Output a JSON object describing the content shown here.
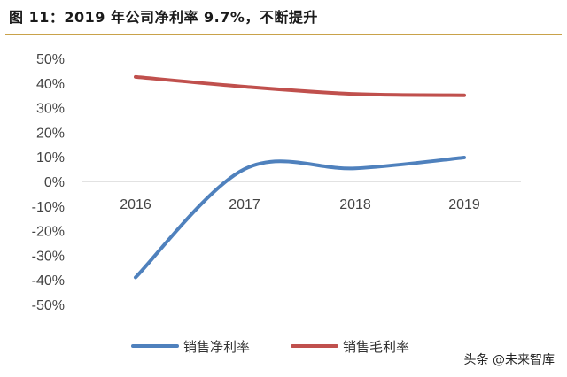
{
  "header": {
    "title": "图 11：2019 年公司净利率 9.7%，不断提升"
  },
  "watermark": "头条 @未来智库",
  "colors": {
    "net_margin": "#4f81bd",
    "gross_margin": "#c0504d",
    "rule": "#c9a24a"
  },
  "chart_data": {
    "type": "line",
    "title": "",
    "xlabel": "",
    "ylabel": "",
    "categories": [
      "2016",
      "2017",
      "2018",
      "2019"
    ],
    "ylim": [
      -50,
      50
    ],
    "yticks": [
      "50%",
      "40%",
      "30%",
      "20%",
      "10%",
      "0%",
      "-10%",
      "-20%",
      "-30%",
      "-40%",
      "-50%"
    ],
    "grid": false,
    "legend_position": "bottom",
    "series": [
      {
        "name": "销售净利率",
        "values": [
          -39.0,
          5.0,
          5.3,
          9.7
        ]
      },
      {
        "name": "销售毛利率",
        "values": [
          42.5,
          38.5,
          35.5,
          35.0
        ]
      }
    ]
  }
}
